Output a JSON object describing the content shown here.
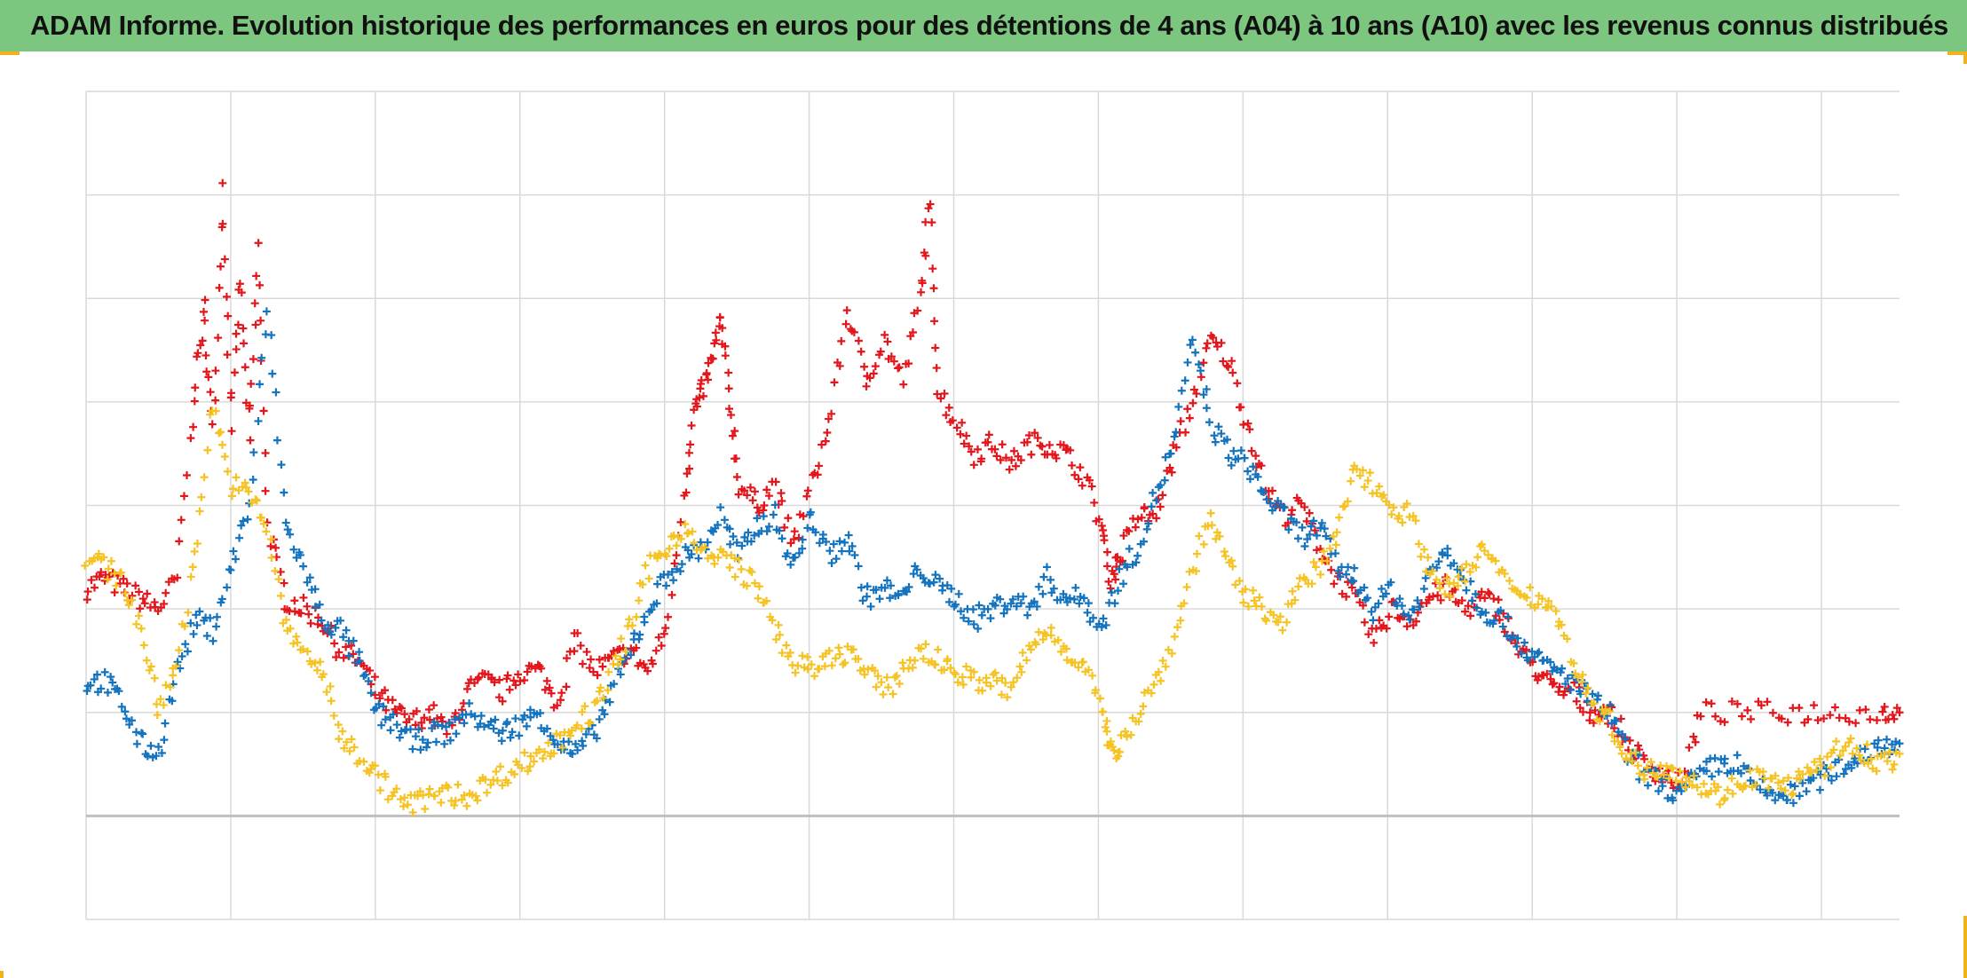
{
  "title": "ADAM Informe. Evolution historique des performances en euros pour des détentions de 4 ans (A04) à 10 ans (A10) avec les revenus connus distribués",
  "colors": {
    "title_bg": "#7dc67f",
    "frame_accent": "#f2b21b",
    "grid": "#d9d9d9",
    "axis": "#bfbfbf"
  },
  "chart_data": {
    "type": "scatter",
    "marker": "plus",
    "grid": true,
    "legend": "none",
    "xlim": [
      0,
      100
    ],
    "ylim": [
      0,
      8
    ],
    "baseline_y": 1,
    "x_gridlines": 12,
    "y_gridlines": 8,
    "series": [
      {
        "color": "#e3161b",
        "points": [
          [
            0,
            3.2
          ],
          [
            1,
            3.3
          ],
          [
            2,
            3.2
          ],
          [
            3,
            3.1
          ],
          [
            4,
            3.0
          ],
          [
            5,
            3.3
          ],
          [
            6,
            5.1
          ],
          [
            6.5,
            5.9
          ],
          [
            7,
            4.7
          ],
          [
            7.5,
            7.1
          ],
          [
            8,
            4.8
          ],
          [
            8.5,
            6.2
          ],
          [
            9,
            4.6
          ],
          [
            9.5,
            6.5
          ],
          [
            10,
            3.8
          ],
          [
            11,
            3.1
          ],
          [
            12,
            3.0
          ],
          [
            13,
            2.9
          ],
          [
            14,
            2.6
          ],
          [
            15,
            2.5
          ],
          [
            16,
            2.2
          ],
          [
            17,
            2.0
          ],
          [
            18,
            1.9
          ],
          [
            19,
            2.0
          ],
          [
            20,
            1.8
          ],
          [
            21,
            2.2
          ],
          [
            22,
            2.3
          ],
          [
            23,
            2.2
          ],
          [
            24,
            2.4
          ],
          [
            25,
            2.4
          ],
          [
            26,
            2.1
          ],
          [
            27,
            2.7
          ],
          [
            28,
            2.4
          ],
          [
            29,
            2.5
          ],
          [
            30,
            2.6
          ],
          [
            31,
            2.4
          ],
          [
            32,
            2.8
          ],
          [
            33,
            4.1
          ],
          [
            33.5,
            4.9
          ],
          [
            34,
            5.1
          ],
          [
            34.5,
            5.4
          ],
          [
            35,
            5.8
          ],
          [
            35.5,
            5.0
          ],
          [
            36,
            4.2
          ],
          [
            37,
            4.0
          ],
          [
            38,
            4.2
          ],
          [
            39,
            3.6
          ],
          [
            40,
            4.2
          ],
          [
            41,
            4.8
          ],
          [
            42,
            5.9
          ],
          [
            43,
            5.2
          ],
          [
            44,
            5.6
          ],
          [
            45,
            5.2
          ],
          [
            46,
            6.0
          ],
          [
            46.5,
            6.9
          ],
          [
            47,
            5.1
          ],
          [
            48,
            4.8
          ],
          [
            49,
            4.5
          ],
          [
            50,
            4.6
          ],
          [
            51,
            4.4
          ],
          [
            52,
            4.6
          ],
          [
            53,
            4.6
          ],
          [
            54,
            4.5
          ],
          [
            55,
            4.3
          ],
          [
            56,
            3.8
          ],
          [
            56.5,
            3.3
          ],
          [
            57,
            3.5
          ],
          [
            58,
            3.9
          ],
          [
            59,
            3.9
          ],
          [
            60,
            4.5
          ],
          [
            61,
            5.0
          ],
          [
            62,
            5.6
          ],
          [
            63,
            5.4
          ],
          [
            64,
            4.8
          ],
          [
            65,
            4.2
          ],
          [
            66,
            3.9
          ],
          [
            67,
            4.0
          ],
          [
            68,
            3.6
          ],
          [
            69,
            3.3
          ],
          [
            70,
            3.1
          ],
          [
            71,
            2.7
          ],
          [
            72,
            3.0
          ],
          [
            73,
            2.9
          ],
          [
            74,
            3.1
          ],
          [
            75,
            3.2
          ],
          [
            76,
            3.0
          ],
          [
            77,
            3.1
          ],
          [
            78,
            3.0
          ],
          [
            79,
            2.6
          ],
          [
            80,
            2.4
          ],
          [
            81,
            2.2
          ],
          [
            82,
            2.2
          ],
          [
            83,
            2.0
          ],
          [
            84,
            2.0
          ],
          [
            85,
            1.7
          ],
          [
            86,
            1.5
          ],
          [
            87,
            1.4
          ],
          [
            88,
            1.3
          ],
          [
            89,
            2.0
          ],
          [
            91,
            2.0
          ],
          [
            93,
            2.0
          ],
          [
            95,
            2.0
          ],
          [
            97,
            2.0
          ],
          [
            99,
            2.0
          ],
          [
            100,
            2.0
          ]
        ]
      },
      {
        "color": "#1373be",
        "points": [
          [
            0,
            2.3
          ],
          [
            1,
            2.3
          ],
          [
            2,
            2.1
          ],
          [
            3,
            1.7
          ],
          [
            4,
            1.6
          ],
          [
            5,
            2.4
          ],
          [
            6,
            2.9
          ],
          [
            7,
            2.8
          ],
          [
            8,
            3.4
          ],
          [
            9,
            4.0
          ],
          [
            10,
            5.9
          ],
          [
            11,
            3.8
          ],
          [
            12,
            3.4
          ],
          [
            13,
            2.9
          ],
          [
            14,
            2.8
          ],
          [
            15,
            2.5
          ],
          [
            16,
            2.0
          ],
          [
            17,
            1.9
          ],
          [
            18,
            1.7
          ],
          [
            19,
            1.8
          ],
          [
            20,
            1.8
          ],
          [
            21,
            2.0
          ],
          [
            22,
            1.9
          ],
          [
            23,
            1.8
          ],
          [
            24,
            1.9
          ],
          [
            25,
            2.0
          ],
          [
            26,
            1.7
          ],
          [
            27,
            1.6
          ],
          [
            28,
            1.8
          ],
          [
            29,
            2.2
          ],
          [
            30,
            2.6
          ],
          [
            31,
            3.0
          ],
          [
            32,
            3.3
          ],
          [
            33,
            3.5
          ],
          [
            34,
            3.6
          ],
          [
            35,
            3.9
          ],
          [
            36,
            3.5
          ],
          [
            37,
            3.8
          ],
          [
            38,
            3.9
          ],
          [
            39,
            3.4
          ],
          [
            40,
            3.9
          ],
          [
            41,
            3.5
          ],
          [
            42,
            3.7
          ],
          [
            43,
            3.1
          ],
          [
            44,
            3.2
          ],
          [
            45,
            3.1
          ],
          [
            46,
            3.4
          ],
          [
            47,
            3.2
          ],
          [
            48,
            3.1
          ],
          [
            49,
            2.9
          ],
          [
            50,
            3.0
          ],
          [
            51,
            3.1
          ],
          [
            52,
            3.0
          ],
          [
            53,
            3.3
          ],
          [
            54,
            3.1
          ],
          [
            55,
            3.1
          ],
          [
            56,
            2.8
          ],
          [
            57,
            3.3
          ],
          [
            58,
            3.6
          ],
          [
            59,
            4.1
          ],
          [
            60,
            4.6
          ],
          [
            61,
            5.6
          ],
          [
            62,
            4.8
          ],
          [
            63,
            4.5
          ],
          [
            64,
            4.4
          ],
          [
            65,
            4.1
          ],
          [
            66,
            3.9
          ],
          [
            67,
            3.7
          ],
          [
            68,
            3.8
          ],
          [
            69,
            3.4
          ],
          [
            70,
            3.3
          ],
          [
            71,
            3.0
          ],
          [
            72,
            3.2
          ],
          [
            73,
            2.9
          ],
          [
            74,
            3.3
          ],
          [
            75,
            3.6
          ],
          [
            76,
            3.3
          ],
          [
            77,
            3.0
          ],
          [
            78,
            2.9
          ],
          [
            79,
            2.7
          ],
          [
            80,
            2.5
          ],
          [
            81,
            2.4
          ],
          [
            82,
            2.3
          ],
          [
            83,
            2.1
          ],
          [
            84,
            2.0
          ],
          [
            85,
            1.6
          ],
          [
            86,
            1.4
          ],
          [
            87,
            1.3
          ],
          [
            88,
            1.2
          ],
          [
            89,
            1.4
          ],
          [
            90,
            1.5
          ],
          [
            91,
            1.5
          ],
          [
            92,
            1.3
          ],
          [
            93,
            1.2
          ],
          [
            94,
            1.2
          ],
          [
            95,
            1.3
          ],
          [
            96,
            1.4
          ],
          [
            97,
            1.5
          ],
          [
            98,
            1.6
          ],
          [
            99,
            1.7
          ],
          [
            100,
            1.7
          ]
        ]
      },
      {
        "color": "#f6c324",
        "points": [
          [
            0,
            3.5
          ],
          [
            1,
            3.4
          ],
          [
            2,
            3.3
          ],
          [
            3,
            2.8
          ],
          [
            4,
            2.0
          ],
          [
            5,
            2.5
          ],
          [
            6,
            3.5
          ],
          [
            7,
            5.0
          ],
          [
            8,
            4.2
          ],
          [
            9,
            4.1
          ],
          [
            10,
            3.8
          ],
          [
            11,
            2.8
          ],
          [
            12,
            2.6
          ],
          [
            13,
            2.4
          ],
          [
            14,
            1.8
          ],
          [
            15,
            1.6
          ],
          [
            16,
            1.4
          ],
          [
            17,
            1.2
          ],
          [
            18,
            1.1
          ],
          [
            19,
            1.2
          ],
          [
            20,
            1.2
          ],
          [
            21,
            1.2
          ],
          [
            22,
            1.3
          ],
          [
            23,
            1.4
          ],
          [
            24,
            1.5
          ],
          [
            25,
            1.6
          ],
          [
            26,
            1.7
          ],
          [
            27,
            1.9
          ],
          [
            28,
            2.0
          ],
          [
            29,
            2.4
          ],
          [
            30,
            2.8
          ],
          [
            31,
            3.4
          ],
          [
            32,
            3.6
          ],
          [
            33,
            3.8
          ],
          [
            34,
            3.5
          ],
          [
            35,
            3.5
          ],
          [
            36,
            3.4
          ],
          [
            37,
            3.2
          ],
          [
            38,
            2.8
          ],
          [
            39,
            2.5
          ],
          [
            40,
            2.4
          ],
          [
            41,
            2.5
          ],
          [
            42,
            2.6
          ],
          [
            43,
            2.4
          ],
          [
            44,
            2.2
          ],
          [
            45,
            2.4
          ],
          [
            46,
            2.6
          ],
          [
            47,
            2.5
          ],
          [
            48,
            2.4
          ],
          [
            49,
            2.3
          ],
          [
            50,
            2.3
          ],
          [
            51,
            2.2
          ],
          [
            52,
            2.6
          ],
          [
            53,
            2.8
          ],
          [
            54,
            2.6
          ],
          [
            55,
            2.5
          ],
          [
            56,
            2.0
          ],
          [
            56.5,
            1.6
          ],
          [
            57,
            1.7
          ],
          [
            58,
            2.0
          ],
          [
            59,
            2.3
          ],
          [
            60,
            2.7
          ],
          [
            61,
            3.4
          ],
          [
            62,
            3.9
          ],
          [
            63,
            3.4
          ],
          [
            64,
            3.1
          ],
          [
            65,
            3.0
          ],
          [
            66,
            2.9
          ],
          [
            67,
            3.2
          ],
          [
            68,
            3.4
          ],
          [
            69,
            3.7
          ],
          [
            70,
            4.4
          ],
          [
            71,
            4.2
          ],
          [
            72,
            4.0
          ],
          [
            73,
            3.9
          ],
          [
            74,
            3.4
          ],
          [
            75,
            3.2
          ],
          [
            76,
            3.3
          ],
          [
            77,
            3.6
          ],
          [
            78,
            3.3
          ],
          [
            79,
            3.2
          ],
          [
            80,
            3.1
          ],
          [
            81,
            3.0
          ],
          [
            82,
            2.5
          ],
          [
            83,
            2.1
          ],
          [
            84,
            1.9
          ],
          [
            85,
            1.6
          ],
          [
            86,
            1.4
          ],
          [
            87,
            1.5
          ],
          [
            88,
            1.4
          ],
          [
            89,
            1.3
          ],
          [
            90,
            1.2
          ],
          [
            91,
            1.3
          ],
          [
            92,
            1.4
          ],
          [
            93,
            1.3
          ],
          [
            94,
            1.3
          ],
          [
            95,
            1.4
          ],
          [
            96,
            1.5
          ],
          [
            97,
            1.7
          ],
          [
            98,
            1.6
          ],
          [
            99,
            1.5
          ],
          [
            100,
            1.6
          ]
        ]
      }
    ]
  }
}
